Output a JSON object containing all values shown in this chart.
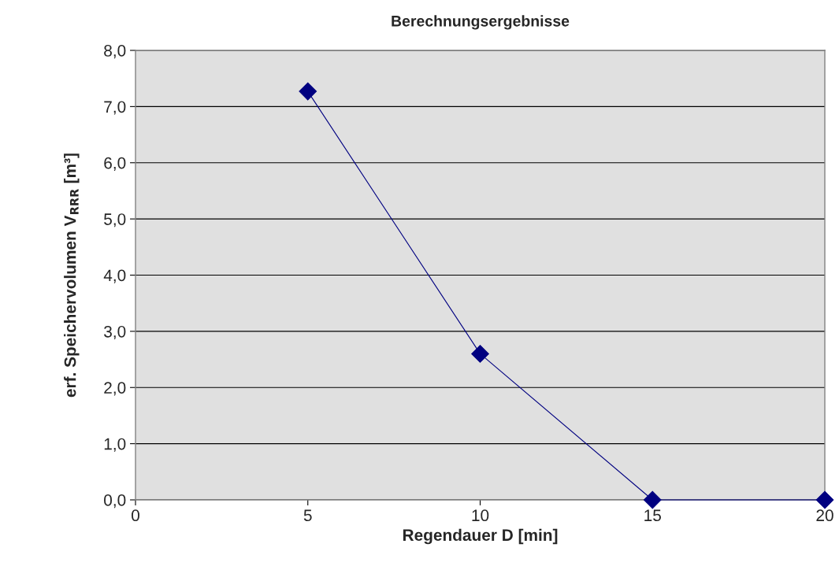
{
  "chart_data": {
    "type": "line",
    "title": "Berechnungsergebnisse",
    "xlabel": "Regendauer D [min]",
    "ylabel": "erf. Speichervolumen V$_{RRR}$ [m³]",
    "x": [
      5,
      10,
      15,
      20
    ],
    "series": [
      {
        "color": "#000080",
        "values": [
          7.27,
          2.6,
          0,
          0
        ]
      }
    ],
    "xlim": [
      0,
      20
    ],
    "xticks": [
      0,
      5,
      10,
      15,
      20
    ],
    "ylim": [
      0,
      8
    ],
    "yticks": [
      {
        "value": 0,
        "label": "0,0"
      },
      {
        "value": 1,
        "label": "1,0"
      },
      {
        "value": 2,
        "label": "2,0"
      },
      {
        "value": 3,
        "label": "3,0"
      },
      {
        "value": 4,
        "label": "4,0"
      },
      {
        "value": 5,
        "label": "5,0"
      },
      {
        "value": 6,
        "label": "6,0"
      },
      {
        "value": 7,
        "label": "7,0"
      },
      {
        "value": 8,
        "label": "8,0"
      }
    ],
    "grid": "y",
    "marker": "diamond",
    "line_style": "solid"
  }
}
